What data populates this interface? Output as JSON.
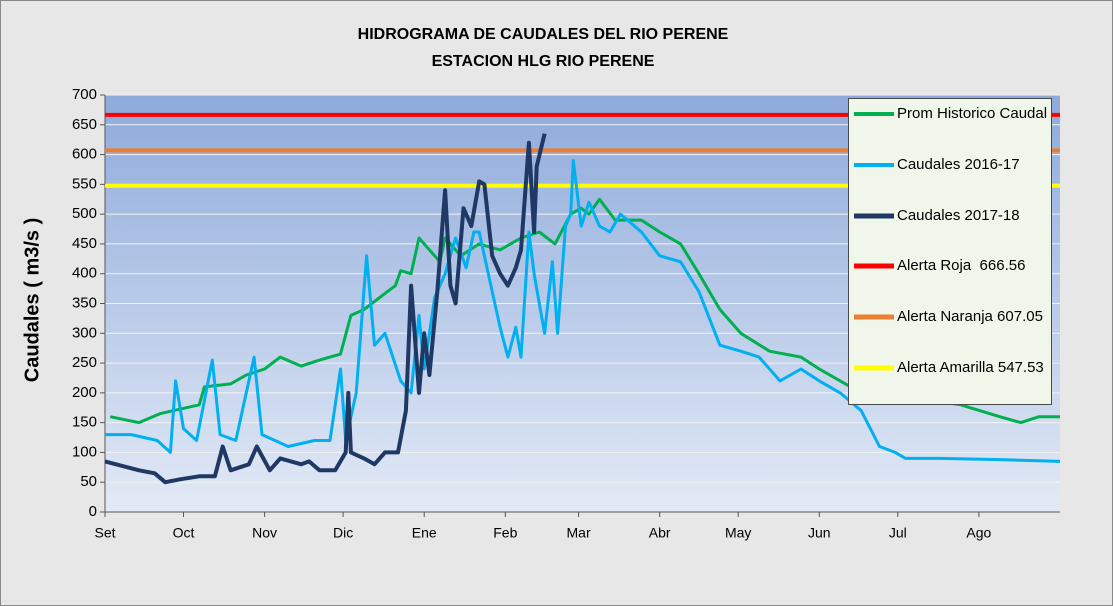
{
  "chart_data": {
    "type": "line",
    "title": "HIDROGRAMA DE CAUDALES DEL RIO PERENE",
    "subtitle": "ESTACION HLG RIO PERENE",
    "y_label": "Caudales ( m3/s )",
    "xlim": [
      0,
      365
    ],
    "xticks": [
      {
        "value": 0,
        "label": "Set"
      },
      {
        "value": 30,
        "label": "Oct"
      },
      {
        "value": 61,
        "label": "Nov"
      },
      {
        "value": 91,
        "label": "Dic"
      },
      {
        "value": 122,
        "label": "Ene"
      },
      {
        "value": 153,
        "label": "Feb"
      },
      {
        "value": 181,
        "label": "Mar"
      },
      {
        "value": 212,
        "label": "Abr"
      },
      {
        "value": 242,
        "label": "May"
      },
      {
        "value": 273,
        "label": "Jun"
      },
      {
        "value": 303,
        "label": "Jul"
      },
      {
        "value": 334,
        "label": "Ago"
      }
    ],
    "ylim": [
      0,
      700
    ],
    "yticks": [
      0,
      50,
      100,
      150,
      200,
      250,
      300,
      350,
      400,
      450,
      500,
      550,
      600,
      650,
      700
    ],
    "grid": true,
    "legend": "right",
    "series": [
      {
        "name": "Prom Historico Caudal",
        "color": "#00b050",
        "x": [
          2,
          13,
          21,
          36,
          38,
          48,
          54,
          61,
          67,
          75,
          82,
          90,
          94,
          99,
          105,
          111,
          113,
          117,
          120,
          124,
          128,
          130,
          136,
          143,
          151,
          159,
          166,
          172,
          178,
          182,
          185,
          189,
          195,
          205,
          212,
          220,
          227,
          235,
          243,
          254,
          266,
          273,
          285,
          296,
          312,
          327,
          342,
          350,
          357,
          365
        ],
        "values": [
          160,
          150,
          165,
          180,
          210,
          215,
          230,
          240,
          260,
          245,
          255,
          265,
          330,
          340,
          360,
          380,
          405,
          400,
          460,
          440,
          420,
          460,
          430,
          450,
          440,
          460,
          470,
          450,
          500,
          510,
          500,
          525,
          490,
          490,
          470,
          450,
          400,
          340,
          300,
          270,
          260,
          240,
          210,
          200,
          190,
          180,
          160,
          150,
          160,
          160
        ]
      },
      {
        "name": "Caudales 2016-17",
        "color": "#00b0f0",
        "x": [
          0,
          10,
          20,
          25,
          27,
          30,
          35,
          41,
          44,
          50,
          57,
          60,
          70,
          80,
          86,
          90,
          92,
          96,
          100,
          103,
          107,
          113,
          117,
          120,
          122,
          126,
          130,
          134,
          138,
          141,
          143,
          147,
          151,
          154,
          157,
          159,
          162,
          164,
          166,
          168,
          171,
          173,
          176,
          178,
          179,
          182,
          185,
          189,
          193,
          197,
          205,
          212,
          220,
          227,
          235,
          243,
          250,
          258,
          266,
          273,
          281,
          289,
          296,
          302,
          306,
          319,
          342,
          365
        ],
        "values": [
          130,
          130,
          120,
          100,
          220,
          140,
          120,
          255,
          130,
          120,
          260,
          130,
          110,
          120,
          120,
          240,
          120,
          200,
          430,
          280,
          300,
          220,
          200,
          330,
          240,
          360,
          400,
          460,
          410,
          470,
          470,
          390,
          310,
          260,
          310,
          260,
          470,
          400,
          350,
          300,
          420,
          300,
          480,
          500,
          590,
          480,
          520,
          480,
          470,
          500,
          470,
          430,
          420,
          370,
          280,
          270,
          260,
          220,
          240,
          220,
          200,
          170,
          110,
          100,
          90,
          90,
          88,
          85
        ]
      },
      {
        "name": "Caudales 2017-18",
        "color": "#1f3864",
        "width": 4,
        "x": [
          0,
          13,
          19,
          23,
          29,
          36,
          42,
          45,
          48,
          55,
          58,
          63,
          67,
          75,
          78,
          82,
          88,
          92,
          93,
          94,
          99,
          103,
          107,
          112,
          115,
          117,
          120,
          122,
          124,
          127,
          130,
          132,
          134,
          137,
          140,
          143,
          145,
          148,
          151,
          154,
          157,
          159,
          162,
          164,
          165,
          168
        ],
        "values": [
          85,
          70,
          65,
          50,
          55,
          60,
          60,
          110,
          70,
          80,
          110,
          70,
          90,
          80,
          85,
          70,
          70,
          100,
          200,
          100,
          90,
          80,
          100,
          100,
          170,
          380,
          200,
          300,
          230,
          370,
          540,
          380,
          350,
          510,
          480,
          555,
          550,
          430,
          400,
          380,
          410,
          440,
          620,
          470,
          580,
          635
        ]
      },
      {
        "name": "Alerta Roja  666.56",
        "color": "#ff0000",
        "width": 4,
        "x": [
          0,
          365
        ],
        "values": [
          666.56,
          666.56
        ]
      },
      {
        "name": "Alerta Naranja 607.05",
        "color": "#ed7d31",
        "width": 4,
        "x": [
          0,
          365
        ],
        "values": [
          607.05,
          607.05
        ]
      },
      {
        "name": "Alerta Amarilla 547.53",
        "color": "#ffff00",
        "width": 4,
        "x": [
          0,
          365
        ],
        "values": [
          547.53,
          547.53
        ]
      }
    ]
  }
}
